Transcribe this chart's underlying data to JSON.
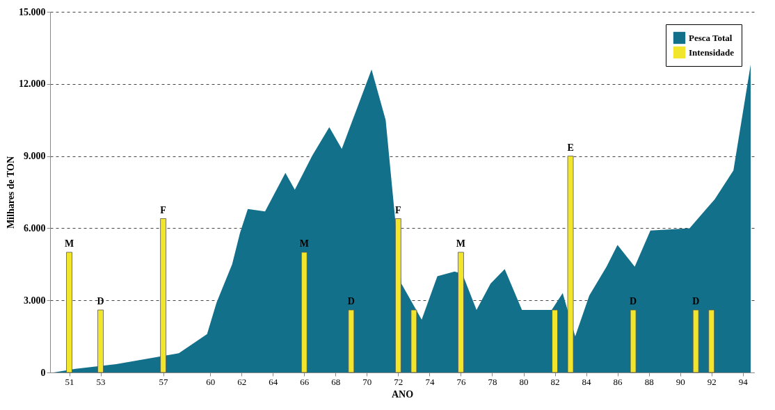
{
  "chart_data": {
    "type": "area",
    "xlabel": "ANO",
    "ylabel": "Milhares de TON",
    "xlim": [
      1950,
      1994.5
    ],
    "ylim": [
      0,
      15000
    ],
    "xticks": [
      {
        "value": 1951,
        "label": "51"
      },
      {
        "value": 1953,
        "label": "53"
      },
      {
        "value": 1957,
        "label": "57"
      },
      {
        "value": 1960,
        "label": "60"
      },
      {
        "value": 1962,
        "label": "62"
      },
      {
        "value": 1964,
        "label": "64"
      },
      {
        "value": 1966,
        "label": "66"
      },
      {
        "value": 1968,
        "label": "68"
      },
      {
        "value": 1970,
        "label": "70"
      },
      {
        "value": 1972,
        "label": "72"
      },
      {
        "value": 1974,
        "label": "74"
      },
      {
        "value": 1976,
        "label": "76"
      },
      {
        "value": 1978,
        "label": "78"
      },
      {
        "value": 1980,
        "label": "80"
      },
      {
        "value": 1982,
        "label": "82"
      },
      {
        "value": 1984,
        "label": "84"
      },
      {
        "value": 1986,
        "label": "86"
      },
      {
        "value": 1988,
        "label": "88"
      },
      {
        "value": 1990,
        "label": "90"
      },
      {
        "value": 1992,
        "label": "92"
      },
      {
        "value": 1994,
        "label": "94"
      }
    ],
    "yticks": [
      0,
      {
        "value": 3000,
        "label": "3.000"
      },
      {
        "value": 6000,
        "label": "6.000"
      },
      {
        "value": 9000,
        "label": "9.000"
      },
      {
        "value": 12000,
        "label": "12.000"
      },
      {
        "value": 15000,
        "label": "15.000"
      }
    ],
    "grid": "y",
    "legend": "top right",
    "series": [
      {
        "name": "Pesca Total",
        "color": "#13708a",
        "x": [
          1950,
          1951.4,
          1954.0,
          1958.0,
          1959.8,
          1960.4,
          1961.4,
          1961.9,
          1962.4,
          1963.5,
          1964.8,
          1965.4,
          1966.5,
          1967.6,
          1968.4,
          1970.3,
          1971.2,
          1972.2,
          1973.5,
          1974.5,
          1975.6,
          1976.1,
          1977.0,
          1977.9,
          1978.8,
          1979.9,
          1981.8,
          1982.5,
          1983.3,
          1984.2,
          1985.3,
          1986.0,
          1987.1,
          1988.1,
          1990.6,
          1992.2,
          1993.4,
          1994.5
        ],
        "values": [
          0,
          150,
          350,
          800,
          1600,
          2900,
          4500,
          5800,
          6800,
          6700,
          8300,
          7600,
          9000,
          10200,
          9300,
          12600,
          10500,
          3700,
          2200,
          4000,
          4200,
          4100,
          2600,
          3700,
          4300,
          2600,
          2600,
          3300,
          1500,
          3200,
          4400,
          5300,
          4400,
          5900,
          6000,
          7200,
          8400,
          12800
        ]
      },
      {
        "name": "Intensidade",
        "type": "bar",
        "color": "#f2e62c",
        "x": [
          1951,
          1953,
          1957,
          1966,
          1969,
          1972,
          1973,
          1976,
          1982,
          1983,
          1987,
          1991,
          1992
        ],
        "values": [
          5000,
          2600,
          6400,
          5000,
          2600,
          6400,
          2600,
          5000,
          2600,
          9000,
          2600,
          2600,
          2600
        ],
        "value_labels": [
          "M",
          "D",
          "F",
          "M",
          "D",
          "F",
          null,
          "M",
          null,
          "E",
          "D",
          "D",
          null
        ]
      }
    ]
  }
}
